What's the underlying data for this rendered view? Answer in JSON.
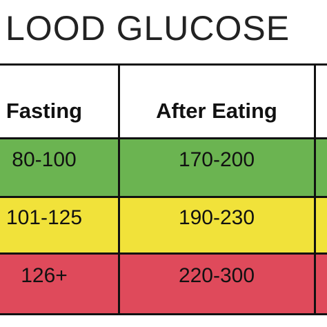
{
  "header": {
    "title": "LOOD GLUCOSE"
  },
  "table": {
    "columns": [
      "Fasting",
      "After Eating"
    ],
    "rows": [
      [
        "80-100",
        "170-200"
      ],
      [
        "101-125",
        "190-230"
      ],
      [
        "126+",
        "220-300"
      ]
    ]
  }
}
